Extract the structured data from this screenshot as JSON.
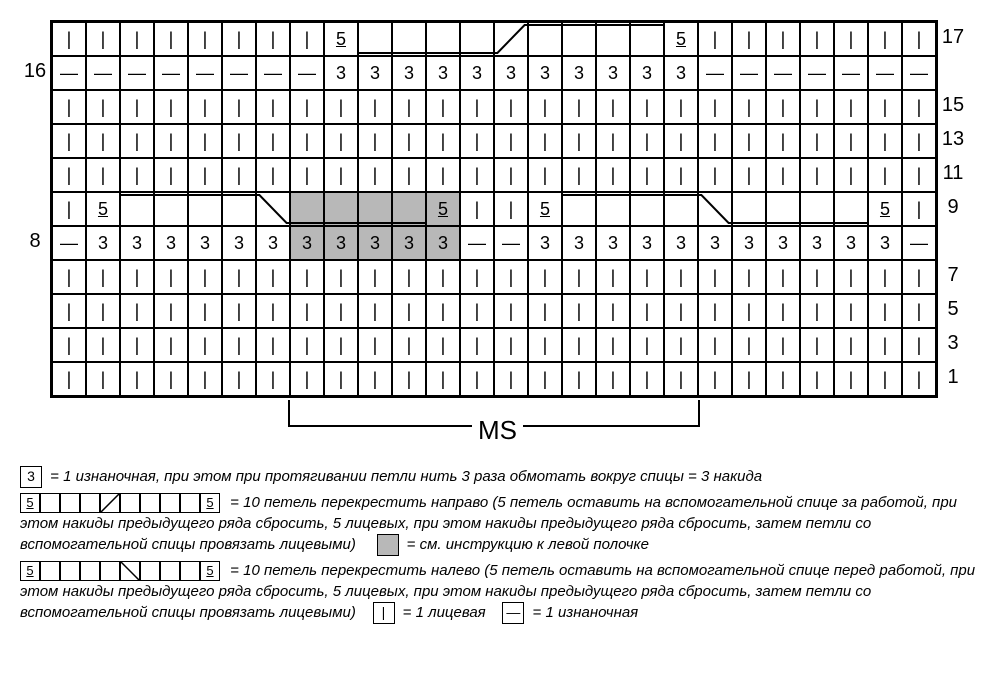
{
  "chart": {
    "rows": 12,
    "cols": 26,
    "cell_size": 34,
    "border_color": "#000000",
    "bg_color": "#ffffff",
    "grey_color": "#b8b8b8",
    "grid": [
      {
        "row": 0,
        "cells": [
          {
            "s": "|"
          },
          {
            "s": "|"
          },
          {
            "s": "|"
          },
          {
            "s": "|"
          },
          {
            "s": "|"
          },
          {
            "s": "|"
          },
          {
            "s": "|"
          },
          {
            "s": "|"
          },
          {
            "s": "5",
            "u": 1
          },
          {
            "s": ""
          },
          {
            "s": ""
          },
          {
            "s": ""
          },
          {
            "s": ""
          },
          {
            "s": ""
          },
          {
            "s": ""
          },
          {
            "s": ""
          },
          {
            "s": ""
          },
          {
            "s": ""
          },
          {
            "s": "5",
            "u": 1
          },
          {
            "s": "|"
          },
          {
            "s": "|"
          },
          {
            "s": "|"
          },
          {
            "s": "|"
          },
          {
            "s": "|"
          },
          {
            "s": "|"
          },
          {
            "s": "|"
          }
        ]
      },
      {
        "row": 1,
        "cells": [
          {
            "s": "—"
          },
          {
            "s": "—"
          },
          {
            "s": "—"
          },
          {
            "s": "—"
          },
          {
            "s": "—"
          },
          {
            "s": "—"
          },
          {
            "s": "—"
          },
          {
            "s": "—"
          },
          {
            "s": "3"
          },
          {
            "s": "3"
          },
          {
            "s": "3"
          },
          {
            "s": "3"
          },
          {
            "s": "3"
          },
          {
            "s": "3"
          },
          {
            "s": "3"
          },
          {
            "s": "3"
          },
          {
            "s": "3"
          },
          {
            "s": "3"
          },
          {
            "s": "3"
          },
          {
            "s": "—"
          },
          {
            "s": "—"
          },
          {
            "s": "—"
          },
          {
            "s": "—"
          },
          {
            "s": "—"
          },
          {
            "s": "—"
          },
          {
            "s": "—"
          }
        ]
      },
      {
        "row": 2,
        "cells": [
          {
            "s": "|"
          },
          {
            "s": "|"
          },
          {
            "s": "|"
          },
          {
            "s": "|"
          },
          {
            "s": "|"
          },
          {
            "s": "|"
          },
          {
            "s": "|"
          },
          {
            "s": "|"
          },
          {
            "s": "|"
          },
          {
            "s": "|"
          },
          {
            "s": "|"
          },
          {
            "s": "|"
          },
          {
            "s": "|"
          },
          {
            "s": "|"
          },
          {
            "s": "|"
          },
          {
            "s": "|"
          },
          {
            "s": "|"
          },
          {
            "s": "|"
          },
          {
            "s": "|"
          },
          {
            "s": "|"
          },
          {
            "s": "|"
          },
          {
            "s": "|"
          },
          {
            "s": "|"
          },
          {
            "s": "|"
          },
          {
            "s": "|"
          },
          {
            "s": "|"
          }
        ]
      },
      {
        "row": 3,
        "cells": [
          {
            "s": "|"
          },
          {
            "s": "|"
          },
          {
            "s": "|"
          },
          {
            "s": "|"
          },
          {
            "s": "|"
          },
          {
            "s": "|"
          },
          {
            "s": "|"
          },
          {
            "s": "|"
          },
          {
            "s": "|"
          },
          {
            "s": "|"
          },
          {
            "s": "|"
          },
          {
            "s": "|"
          },
          {
            "s": "|"
          },
          {
            "s": "|"
          },
          {
            "s": "|"
          },
          {
            "s": "|"
          },
          {
            "s": "|"
          },
          {
            "s": "|"
          },
          {
            "s": "|"
          },
          {
            "s": "|"
          },
          {
            "s": "|"
          },
          {
            "s": "|"
          },
          {
            "s": "|"
          },
          {
            "s": "|"
          },
          {
            "s": "|"
          },
          {
            "s": "|"
          }
        ]
      },
      {
        "row": 4,
        "cells": [
          {
            "s": "|"
          },
          {
            "s": "|"
          },
          {
            "s": "|"
          },
          {
            "s": "|"
          },
          {
            "s": "|"
          },
          {
            "s": "|"
          },
          {
            "s": "|"
          },
          {
            "s": "|"
          },
          {
            "s": "|"
          },
          {
            "s": "|"
          },
          {
            "s": "|"
          },
          {
            "s": "|"
          },
          {
            "s": "|"
          },
          {
            "s": "|"
          },
          {
            "s": "|"
          },
          {
            "s": "|"
          },
          {
            "s": "|"
          },
          {
            "s": "|"
          },
          {
            "s": "|"
          },
          {
            "s": "|"
          },
          {
            "s": "|"
          },
          {
            "s": "|"
          },
          {
            "s": "|"
          },
          {
            "s": "|"
          },
          {
            "s": "|"
          },
          {
            "s": "|"
          }
        ]
      },
      {
        "row": 5,
        "cells": [
          {
            "s": "|"
          },
          {
            "s": "5",
            "u": 1
          },
          {
            "s": ""
          },
          {
            "s": ""
          },
          {
            "s": ""
          },
          {
            "s": ""
          },
          {
            "s": ""
          },
          {
            "s": "",
            "g": 1
          },
          {
            "s": "",
            "g": 1
          },
          {
            "s": "",
            "g": 1
          },
          {
            "s": "",
            "g": 1
          },
          {
            "s": "5",
            "u": 1,
            "g": 1
          },
          {
            "s": "|"
          },
          {
            "s": "|"
          },
          {
            "s": "5",
            "u": 1
          },
          {
            "s": ""
          },
          {
            "s": ""
          },
          {
            "s": ""
          },
          {
            "s": ""
          },
          {
            "s": ""
          },
          {
            "s": ""
          },
          {
            "s": ""
          },
          {
            "s": ""
          },
          {
            "s": ""
          },
          {
            "s": "5",
            "u": 1
          },
          {
            "s": "|"
          }
        ]
      },
      {
        "row": 6,
        "cells": [
          {
            "s": "—"
          },
          {
            "s": "3"
          },
          {
            "s": "3"
          },
          {
            "s": "3"
          },
          {
            "s": "3"
          },
          {
            "s": "3"
          },
          {
            "s": "3"
          },
          {
            "s": "3",
            "g": 1
          },
          {
            "s": "3",
            "g": 1
          },
          {
            "s": "3",
            "g": 1
          },
          {
            "s": "3",
            "g": 1
          },
          {
            "s": "3",
            "g": 1
          },
          {
            "s": "—"
          },
          {
            "s": "—"
          },
          {
            "s": "3"
          },
          {
            "s": "3"
          },
          {
            "s": "3"
          },
          {
            "s": "3"
          },
          {
            "s": "3"
          },
          {
            "s": "3"
          },
          {
            "s": "3"
          },
          {
            "s": "3"
          },
          {
            "s": "3"
          },
          {
            "s": "3"
          },
          {
            "s": "3"
          },
          {
            "s": "—"
          }
        ]
      },
      {
        "row": 7,
        "cells": [
          {
            "s": "|"
          },
          {
            "s": "|"
          },
          {
            "s": "|"
          },
          {
            "s": "|"
          },
          {
            "s": "|"
          },
          {
            "s": "|"
          },
          {
            "s": "|"
          },
          {
            "s": "|"
          },
          {
            "s": "|"
          },
          {
            "s": "|"
          },
          {
            "s": "|"
          },
          {
            "s": "|"
          },
          {
            "s": "|"
          },
          {
            "s": "|"
          },
          {
            "s": "|"
          },
          {
            "s": "|"
          },
          {
            "s": "|"
          },
          {
            "s": "|"
          },
          {
            "s": "|"
          },
          {
            "s": "|"
          },
          {
            "s": "|"
          },
          {
            "s": "|"
          },
          {
            "s": "|"
          },
          {
            "s": "|"
          },
          {
            "s": "|"
          },
          {
            "s": "|"
          }
        ]
      },
      {
        "row": 8,
        "cells": [
          {
            "s": "|"
          },
          {
            "s": "|"
          },
          {
            "s": "|"
          },
          {
            "s": "|"
          },
          {
            "s": "|"
          },
          {
            "s": "|"
          },
          {
            "s": "|"
          },
          {
            "s": "|"
          },
          {
            "s": "|"
          },
          {
            "s": "|"
          },
          {
            "s": "|"
          },
          {
            "s": "|"
          },
          {
            "s": "|"
          },
          {
            "s": "|"
          },
          {
            "s": "|"
          },
          {
            "s": "|"
          },
          {
            "s": "|"
          },
          {
            "s": "|"
          },
          {
            "s": "|"
          },
          {
            "s": "|"
          },
          {
            "s": "|"
          },
          {
            "s": "|"
          },
          {
            "s": "|"
          },
          {
            "s": "|"
          },
          {
            "s": "|"
          },
          {
            "s": "|"
          }
        ]
      },
      {
        "row": 9,
        "cells": [
          {
            "s": "|"
          },
          {
            "s": "|"
          },
          {
            "s": "|"
          },
          {
            "s": "|"
          },
          {
            "s": "|"
          },
          {
            "s": "|"
          },
          {
            "s": "|"
          },
          {
            "s": "|"
          },
          {
            "s": "|"
          },
          {
            "s": "|"
          },
          {
            "s": "|"
          },
          {
            "s": "|"
          },
          {
            "s": "|"
          },
          {
            "s": "|"
          },
          {
            "s": "|"
          },
          {
            "s": "|"
          },
          {
            "s": "|"
          },
          {
            "s": "|"
          },
          {
            "s": "|"
          },
          {
            "s": "|"
          },
          {
            "s": "|"
          },
          {
            "s": "|"
          },
          {
            "s": "|"
          },
          {
            "s": "|"
          },
          {
            "s": "|"
          },
          {
            "s": "|"
          }
        ]
      },
      {
        "row": 10,
        "cells": [
          {
            "s": "|"
          },
          {
            "s": "|"
          },
          {
            "s": "|"
          },
          {
            "s": "|"
          },
          {
            "s": "|"
          },
          {
            "s": "|"
          },
          {
            "s": "|"
          },
          {
            "s": "|"
          },
          {
            "s": "|"
          },
          {
            "s": "|"
          },
          {
            "s": "|"
          },
          {
            "s": "|"
          },
          {
            "s": "|"
          },
          {
            "s": "|"
          },
          {
            "s": "|"
          },
          {
            "s": "|"
          },
          {
            "s": "|"
          },
          {
            "s": "|"
          },
          {
            "s": "|"
          },
          {
            "s": "|"
          },
          {
            "s": "|"
          },
          {
            "s": "|"
          },
          {
            "s": "|"
          },
          {
            "s": "|"
          },
          {
            "s": "|"
          },
          {
            "s": "|"
          }
        ]
      }
    ],
    "right_labels": [
      "17",
      "",
      "15",
      "13",
      "11",
      "9",
      "",
      "7",
      "5",
      "3",
      "1"
    ],
    "left_labels": [
      "",
      "16",
      "",
      "",
      "",
      "",
      "8",
      "",
      "",
      "",
      ""
    ],
    "ms_label": "MS",
    "ms_start_col": 7,
    "ms_end_col": 19
  },
  "legend": {
    "line1_sym": "3",
    "line1": "= 1 изнаночная, при этом при протягивании петли нить 3 раза обмотать вокруг спицы = 3 накида",
    "cable_right": [
      "5",
      "",
      "",
      "",
      "",
      "",
      "",
      "",
      "",
      "5"
    ],
    "line2": "= 10 петель перекрестить направо (5 петель оставить на вспомогательной спице за работой, при этом накиды предыдущего ряда сбросить, 5 лицевых, при этом накиды предыдущего ряда сбросить, затем петли со вспомогательной спицы провязать лицевыми)",
    "grey_text": "= см. инструкцию к левой полочке",
    "cable_left": [
      "5",
      "",
      "",
      "",
      "",
      "",
      "",
      "",
      "",
      "5"
    ],
    "line3": "= 10 петель перекрестить налево (5 петель оставить на вспомогательной спице перед работой, при этом накиды предыдущего ряда сбросить, 5 лицевых, при этом накиды предыдущего ряда сбросить, затем петли со вспомогательной спицы провязать лицевыми)",
    "knit_sym": "|",
    "knit_text": "= 1 лицевая",
    "purl_sym": "—",
    "purl_text": "= 1 изнаночная"
  }
}
